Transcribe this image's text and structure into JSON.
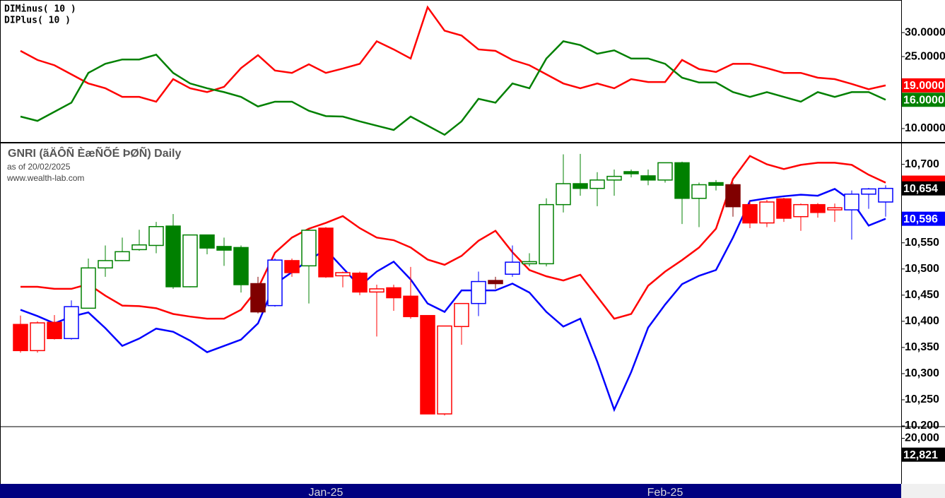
{
  "chart_data": [
    {
      "type": "line",
      "series": [
        {
          "name": "DIMinus( 10 )",
          "color": "#ff0000",
          "last_value_label": "19.0000",
          "values": [
            26.2,
            24.3,
            23.2,
            21.3,
            19.4,
            18.4,
            16.6,
            16.6,
            15.6,
            20.3,
            18.4,
            17.6,
            18.7,
            22.6,
            25.3,
            22.1,
            21.6,
            23.4,
            21.6,
            22.5,
            23.5,
            28.2,
            26.5,
            24.6,
            35.3,
            30.4,
            29.4,
            26.5,
            26.2,
            24.3,
            23.2,
            21.3,
            19.4,
            18.4,
            19.4,
            18.4,
            20.3,
            19.7,
            19.7,
            24.3,
            22.4,
            21.8,
            23.5,
            23.5,
            22.6,
            21.6,
            21.6,
            20.6,
            20.3,
            19.3,
            18.2,
            19
          ]
        },
        {
          "name": "DIPlus( 10 )",
          "color": "#008000",
          "last_value_label": "16.0000",
          "values": [
            12.5,
            11.6,
            13.5,
            15.4,
            21.6,
            23.5,
            24.4,
            24.4,
            25.4,
            21.6,
            19.4,
            18.4,
            17.6,
            16.6,
            14.6,
            15.6,
            15.6,
            13.7,
            12.6,
            12.5,
            11.5,
            10.6,
            9.7,
            12.5,
            10.6,
            8.7,
            11.5,
            16.2,
            15.4,
            19.4,
            18.4,
            24.6,
            28.2,
            27.4,
            25.6,
            26.3,
            24.6,
            24.6,
            23.5,
            20.6,
            19.6,
            19.6,
            17.6,
            16.6,
            17.6,
            16.6,
            15.6,
            17.6,
            16.6,
            17.6,
            17.6,
            16
          ]
        }
      ],
      "ylim": [
        7.2,
        36.8
      ],
      "yticks": [
        {
          "value": 30,
          "label": "30.0000"
        },
        {
          "value": 25,
          "label": "25.0000"
        },
        {
          "value": 10,
          "label": "10.0000"
        }
      ]
    },
    {
      "type": "candlestick",
      "title": "GNRI (ãÄÔÑ ÈæÑÕÉ ÞØÑ) Daily",
      "subtitle": "as of 20/02/2025",
      "source": "www.wealth-lab.com",
      "open": [
        10394,
        10344,
        10398,
        10367,
        10425,
        10502,
        10516,
        10537,
        10545,
        10582,
        10466,
        10565,
        10543,
        10541,
        10472,
        10430,
        10516,
        10506,
        10578,
        10487,
        10492,
        10456,
        10464,
        10448,
        10411,
        10223,
        10390,
        10434,
        10478,
        10490,
        10510,
        10510,
        10623,
        10663,
        10654,
        10670,
        10686,
        10678,
        10670,
        10703,
        10635,
        10665,
        10661,
        10623,
        10588,
        10634,
        10600,
        10623,
        10613,
        10613,
        10643,
        10628
      ],
      "high": [
        10411,
        10400,
        10412,
        10440,
        10520,
        10545,
        10560,
        10575,
        10590,
        10605,
        10565,
        10565,
        10560,
        10545,
        10485,
        10520,
        10520,
        10575,
        10580,
        10495,
        10495,
        10470,
        10470,
        10504,
        10411,
        10391,
        10434,
        10495,
        10485,
        10545,
        10530,
        10635,
        10719,
        10720,
        10685,
        10690,
        10690,
        10690,
        10703,
        10705,
        10665,
        10670,
        10665,
        10630,
        10632,
        10636,
        10625,
        10626,
        10625,
        10650,
        10655,
        10660
      ],
      "low": [
        10340,
        10340,
        10365,
        10365,
        10425,
        10485,
        10515,
        10535,
        10530,
        10462,
        10465,
        10528,
        10506,
        10455,
        10415,
        10428,
        10485,
        10434,
        10483,
        10465,
        10450,
        10371,
        10420,
        10405,
        10223,
        10220,
        10355,
        10410,
        10462,
        10485,
        10505,
        10505,
        10608,
        10640,
        10620,
        10640,
        10675,
        10660,
        10665,
        10586,
        10580,
        10650,
        10600,
        10578,
        10580,
        10590,
        10573,
        10598,
        10590,
        10556,
        10615,
        10600
      ],
      "close": [
        10344,
        10397,
        10367,
        10428,
        10502,
        10516,
        10533,
        10546,
        10581,
        10466,
        10565,
        10540,
        10536,
        10470,
        10418,
        10517,
        10493,
        10574,
        10485,
        10493,
        10456,
        10462,
        10445,
        10409,
        10223,
        10391,
        10434,
        10476,
        10472,
        10513,
        10514,
        10623,
        10663,
        10654,
        10670,
        10677,
        10682,
        10670,
        10703,
        10635,
        10661,
        10660,
        10619,
        10588,
        10628,
        10597,
        10623,
        10608,
        10617,
        10643,
        10653,
        10654
      ],
      "last_close_label": "10,654",
      "candle_colors": [
        "#ff0000",
        "#ff0000",
        "#ff0000",
        "#0000ff",
        "#008000",
        "#008000",
        "#008000",
        "#008000",
        "#008000",
        "#008000",
        "#008000",
        "#008000",
        "#008000",
        "#008000",
        "#800000",
        "#0000ff",
        "#ff0000",
        "#008000",
        "#ff0000",
        "#ff0000",
        "#ff0000",
        "#ff0000",
        "#ff0000",
        "#ff0000",
        "#ff0000",
        "#ff0000",
        "#ff0000",
        "#0000ff",
        "#800000",
        "#0000ff",
        "#008000",
        "#008000",
        "#008000",
        "#008000",
        "#008000",
        "#008000",
        "#008000",
        "#008000",
        "#008000",
        "#008000",
        "#008000",
        "#008000",
        "#800000",
        "#ff0000",
        "#ff0000",
        "#ff0000",
        "#ff0000",
        "#ff0000",
        "#ff0000",
        "#0000ff",
        "#0000ff",
        "#0000ff"
      ],
      "series": [
        {
          "color": "#ff0000",
          "values": [
            10466,
            10466,
            10462,
            10462,
            10471,
            10449,
            10430,
            10429,
            10425,
            10414,
            10409,
            10405,
            10405,
            10422,
            10463,
            10531,
            10560,
            10577,
            10588,
            10601,
            10578,
            10560,
            10555,
            10541,
            10518,
            10508,
            10525,
            10554,
            10573,
            10532,
            10498,
            10486,
            10478,
            10489,
            10447,
            10405,
            10414,
            10468,
            10495,
            10517,
            10541,
            10577,
            10672,
            10716,
            10700,
            10691,
            10699,
            10703,
            10703,
            10699,
            10680,
            10665
          ]
        },
        {
          "color": "#0000ff",
          "last_value_label": "10,596",
          "values": [
            10422,
            10410,
            10396,
            10409,
            10417,
            10387,
            10353,
            10367,
            10386,
            10380,
            10363,
            10341,
            10353,
            10365,
            10396,
            10471,
            10494,
            10517,
            10537,
            10502,
            10467,
            10495,
            10514,
            10480,
            10434,
            10418,
            10459,
            10459,
            10459,
            10472,
            10455,
            10418,
            10390,
            10405,
            10323,
            10231,
            10303,
            10388,
            10432,
            10471,
            10487,
            10498,
            10560,
            10630,
            10635,
            10639,
            10642,
            10640,
            10653,
            10630,
            10583,
            10596
          ]
        }
      ],
      "ylim": [
        10200,
        10740
      ],
      "yticks": [
        {
          "value": 10700,
          "label": "10,700"
        },
        {
          "value": 10550,
          "label": "10,550"
        },
        {
          "value": 10500,
          "label": "10,500"
        },
        {
          "value": 10450,
          "label": "10,450"
        },
        {
          "value": 10400,
          "label": "10,400"
        },
        {
          "value": 10350,
          "label": "10,350"
        },
        {
          "value": 10300,
          "label": "10,300"
        },
        {
          "value": 10250,
          "label": "10,250"
        },
        {
          "value": 10200,
          "label": "10.200"
        }
      ],
      "xticks": [
        {
          "value": 18,
          "label": "Jan-25"
        },
        {
          "value": 38,
          "label": "Feb-25"
        }
      ]
    },
    {
      "type": "volume",
      "ylim": [
        0,
        24800
      ],
      "yticks": [
        {
          "value": 20000,
          "label": "20,000"
        }
      ],
      "last_value": 12821,
      "last_value_label": "12,821"
    }
  ]
}
